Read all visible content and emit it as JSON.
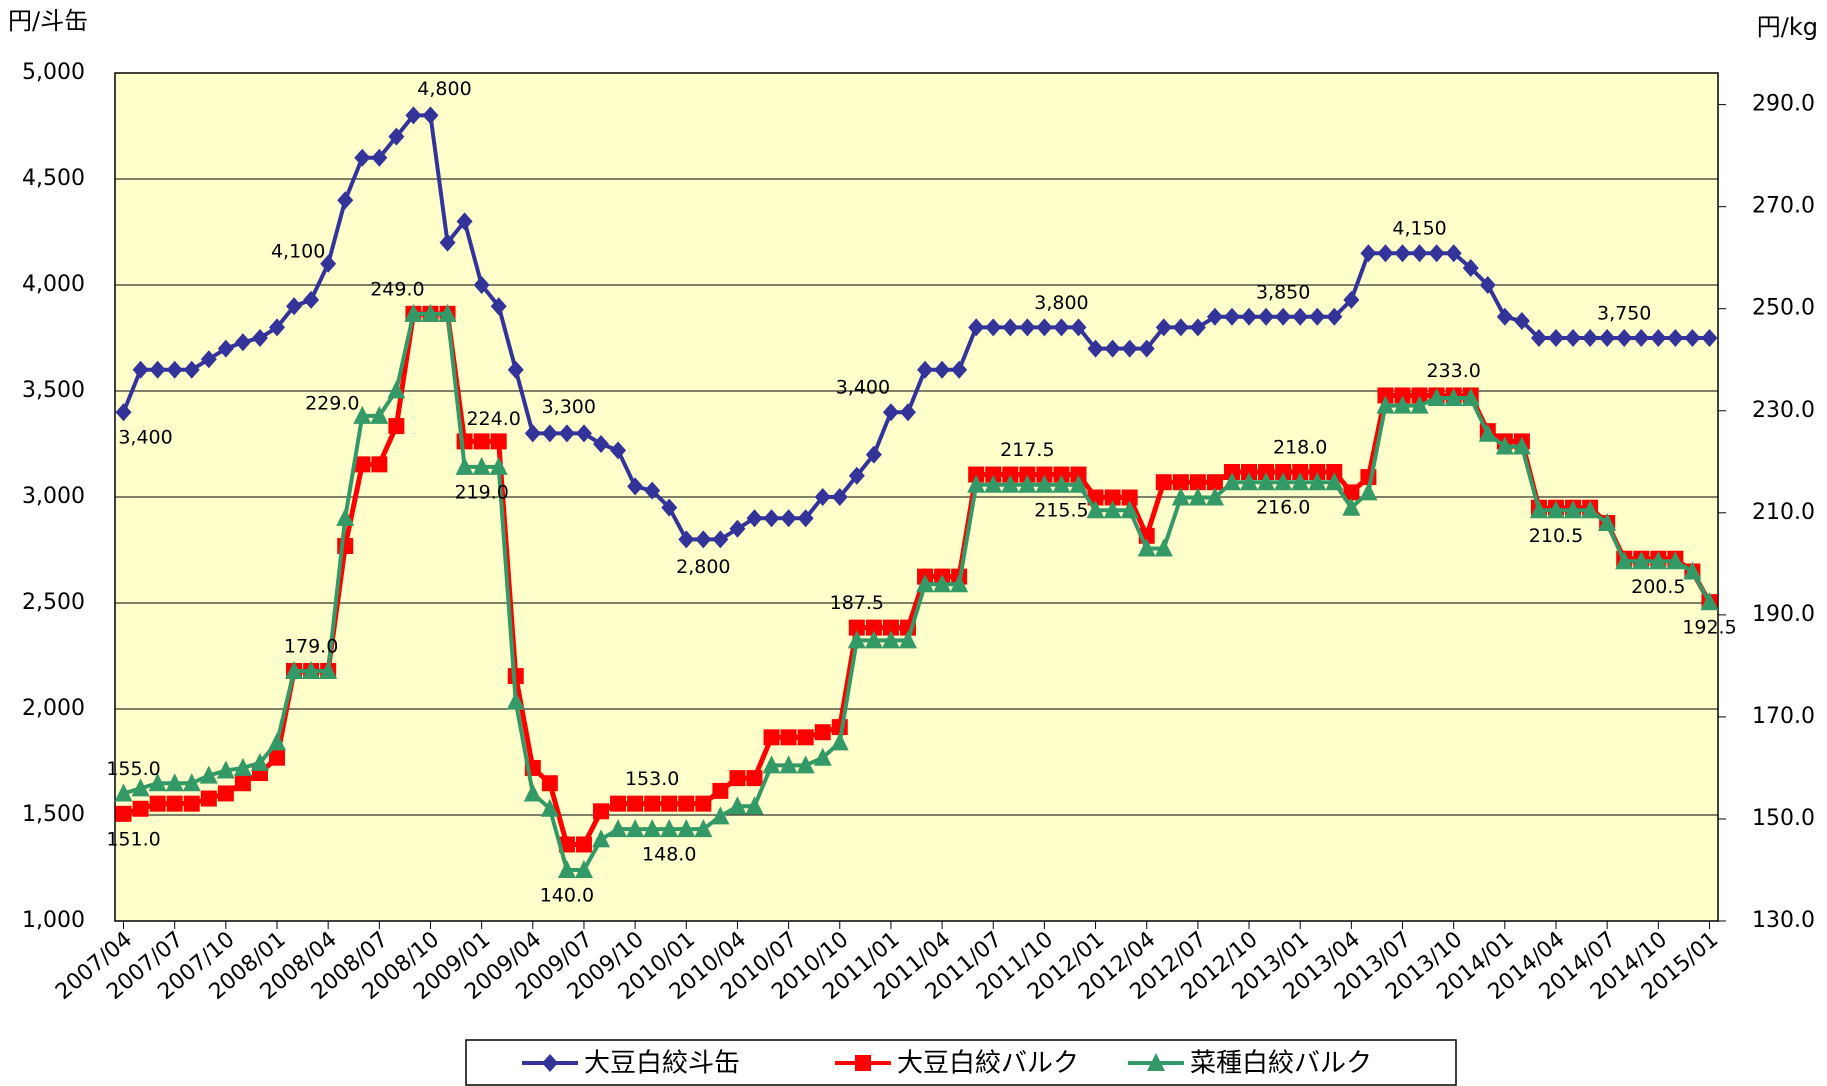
{
  "chart_data": {
    "type": "line",
    "ylabel": "円/斗缶",
    "y2label": "円/kg",
    "categories": [
      "2007/04",
      null,
      null,
      "2007/07",
      null,
      null,
      "2007/10",
      null,
      null,
      "2008/01",
      null,
      null,
      "2008/04",
      null,
      null,
      "2008/07",
      null,
      null,
      "2008/10",
      null,
      null,
      "2009/01",
      null,
      null,
      "2009/04",
      null,
      null,
      "2009/07",
      null,
      null,
      "2009/10",
      null,
      null,
      "2010/01",
      null,
      null,
      "2010/04",
      null,
      null,
      "2010/07",
      null,
      null,
      "2010/10",
      null,
      null,
      "2011/01",
      null,
      null,
      "2011/04",
      null,
      null,
      "2011/07",
      null,
      null,
      "2011/10",
      null,
      null,
      "2012/01",
      null,
      null,
      "2012/04",
      null,
      null,
      "2012/07",
      null,
      null,
      "2012/10",
      null,
      null,
      "2013/01",
      null,
      null,
      "2013/04",
      null,
      null,
      "2013/07",
      null,
      null,
      "2013/10",
      null,
      null,
      "2014/01",
      null,
      null,
      "2014/04",
      null,
      null,
      "2014/07",
      null,
      null,
      "2014/10",
      null,
      null,
      "2015/01"
    ],
    "series": [
      {
        "name": "大豆白絞斗缶",
        "color": "#333399",
        "marker": "diamond",
        "values": [
          3400,
          3600,
          3600,
          3600,
          3600,
          3650,
          3700,
          3730,
          3750,
          3800,
          3900,
          3930,
          4100,
          4400,
          4600,
          4600,
          4700,
          4800,
          4800,
          4200,
          4300,
          4000,
          3900,
          3600,
          3300,
          3300,
          3300,
          3300,
          3250,
          3220,
          3050,
          3030,
          2950,
          2800,
          2800,
          2800,
          2850,
          2900,
          2900,
          2900,
          2900,
          3000,
          3000,
          3100,
          3200,
          3400,
          3400,
          3600,
          3600,
          3600,
          3800,
          3800,
          3800,
          3800,
          3800,
          3800,
          3800,
          3700,
          3700,
          3700,
          3700,
          3800,
          3800,
          3800,
          3850,
          3850,
          3850,
          3850,
          3850,
          3850,
          3850,
          3850,
          3930,
          4150,
          4150,
          4150,
          4150,
          4150,
          4150,
          4080,
          4000,
          3850,
          3830,
          3750,
          3750,
          3750,
          3750,
          3750,
          3750,
          3750,
          3750,
          3750,
          3750,
          3750
        ],
        "value_labels": [
          "3,400",
          null,
          null,
          null,
          null,
          null,
          null,
          null,
          null,
          null,
          null,
          null,
          "4,100",
          null,
          null,
          null,
          null,
          null,
          "4,800",
          null,
          null,
          null,
          null,
          null,
          "3,300",
          null,
          null,
          null,
          null,
          null,
          null,
          null,
          null,
          null,
          "2,800",
          null,
          null,
          null,
          null,
          null,
          null,
          null,
          null,
          null,
          null,
          "3,400",
          null,
          null,
          null,
          null,
          null,
          null,
          null,
          null,
          null,
          "3,800",
          null,
          null,
          null,
          null,
          null,
          null,
          null,
          null,
          null,
          null,
          null,
          null,
          "3,850",
          null,
          null,
          null,
          null,
          null,
          null,
          null,
          "4,150",
          null,
          null,
          null,
          null,
          null,
          null,
          null,
          null,
          null,
          null,
          null,
          "3,750",
          null,
          null,
          null,
          null,
          null
        ]
      },
      {
        "name": "大豆白絞バルク",
        "color": "#ff0000",
        "marker": "square",
        "axis": "y2",
        "values": [
          151,
          152,
          153,
          153,
          153,
          154,
          155,
          157,
          159,
          162,
          179,
          179,
          179,
          203.5,
          219.5,
          219.5,
          227,
          249,
          249,
          249,
          224,
          224,
          224,
          178,
          160,
          157,
          145,
          145,
          151.5,
          153,
          153,
          153,
          153,
          153,
          153,
          155.5,
          158,
          158,
          166,
          166,
          166,
          167,
          168,
          187.5,
          187.5,
          187.5,
          187.5,
          197.5,
          197.5,
          197.5,
          217.5,
          217.5,
          217.5,
          217.5,
          217.5,
          217.5,
          217.5,
          213,
          213,
          213,
          205.5,
          216,
          216,
          216,
          216,
          218,
          218,
          218,
          218,
          218,
          218,
          218,
          214,
          217,
          233,
          233,
          233,
          233,
          233,
          233,
          226,
          224,
          224,
          211,
          211,
          211,
          211,
          208,
          201,
          201,
          201,
          201,
          198.5,
          192.5
        ],
        "value_labels": [
          "151.0",
          null,
          null,
          null,
          null,
          null,
          null,
          null,
          null,
          null,
          null,
          null,
          null,
          null,
          null,
          null,
          null,
          null,
          null,
          null,
          null,
          "224.0",
          null,
          null,
          null,
          null,
          null,
          null,
          null,
          null,
          null,
          "153.0",
          null,
          null,
          null,
          null,
          null,
          null,
          null,
          null,
          null,
          null,
          null,
          "187.5",
          null,
          null,
          null,
          null,
          null,
          null,
          null,
          null,
          null,
          "217.5",
          null,
          null,
          null,
          null,
          null,
          null,
          null,
          null,
          null,
          null,
          null,
          null,
          null,
          null,
          null,
          "218.0",
          null,
          null,
          null,
          null,
          null,
          null,
          null,
          null,
          "233.0",
          null,
          null,
          null,
          null,
          null,
          null,
          null,
          null,
          null,
          null,
          null,
          null,
          null,
          null,
          null
        ]
      },
      {
        "name": "菜種白絞バルク",
        "color": "#339966",
        "marker": "triangle",
        "axis": "y2",
        "values": [
          155,
          156,
          157,
          157,
          157,
          158.5,
          159.5,
          160,
          161,
          165,
          179,
          179,
          179,
          209,
          229,
          229,
          234,
          249,
          249,
          249,
          219,
          219,
          219,
          173,
          155,
          152,
          140,
          140,
          146,
          148,
          148,
          148,
          148,
          148,
          148,
          150.5,
          152.5,
          152.5,
          160.5,
          160.5,
          160.5,
          162,
          165,
          185,
          185,
          185,
          185,
          196,
          196,
          196,
          215.5,
          215.5,
          215.5,
          215.5,
          215.5,
          215.5,
          215.5,
          210.5,
          210.5,
          210.5,
          203,
          203,
          213,
          213,
          213,
          216,
          216,
          216,
          216,
          216,
          216,
          216,
          211,
          214,
          231,
          231,
          231,
          232.5,
          232.5,
          232.5,
          225.5,
          223,
          223,
          210.5,
          210.5,
          210.5,
          210.5,
          208,
          200.5,
          200.5,
          200.5,
          200.5,
          198.5,
          192.5
        ],
        "value_labels": [
          "155.0",
          null,
          null,
          null,
          null,
          null,
          null,
          null,
          null,
          null,
          null,
          "179.0",
          null,
          null,
          "229.0",
          null,
          null,
          "249.0",
          null,
          null,
          null,
          "219.0",
          null,
          null,
          null,
          null,
          "140.0",
          null,
          null,
          null,
          null,
          null,
          "148.0",
          null,
          null,
          null,
          null,
          null,
          null,
          null,
          null,
          null,
          null,
          null,
          null,
          null,
          null,
          null,
          null,
          null,
          null,
          null,
          null,
          null,
          null,
          "215.5",
          null,
          null,
          null,
          null,
          null,
          null,
          null,
          null,
          null,
          null,
          null,
          null,
          "216.0",
          null,
          null,
          null,
          null,
          null,
          null,
          null,
          null,
          null,
          null,
          null,
          null,
          null,
          null,
          null,
          "210.5",
          null,
          null,
          null,
          null,
          null,
          "200.5",
          null,
          null,
          "192.5"
        ]
      }
    ],
    "ylim": [
      1000,
      5000
    ],
    "yticks": [
      {
        "value": 1000,
        "label": "1,000"
      },
      {
        "value": 1500,
        "label": "1,500"
      },
      {
        "value": 2000,
        "label": "2,000"
      },
      {
        "value": 2500,
        "label": "2,500"
      },
      {
        "value": 3000,
        "label": "3,000"
      },
      {
        "value": 3500,
        "label": "3,500"
      },
      {
        "value": 4000,
        "label": "4,000"
      },
      {
        "value": 4500,
        "label": "4,500"
      },
      {
        "value": 5000,
        "label": "5,000"
      }
    ],
    "y2lim": [
      130,
      296.2
    ],
    "y2ticks": [
      {
        "value": 130,
        "label": "130.0"
      },
      {
        "value": 150,
        "label": "150.0"
      },
      {
        "value": 170,
        "label": "170.0"
      },
      {
        "value": 190,
        "label": "190.0"
      },
      {
        "value": 210,
        "label": "210.0"
      },
      {
        "value": 230,
        "label": "230.0"
      },
      {
        "value": 250,
        "label": "250.0"
      },
      {
        "value": 270,
        "label": "270.0"
      },
      {
        "value": 290,
        "label": "290.0"
      }
    ],
    "grid": true,
    "legend": "bottom",
    "background": "#ffffcc"
  }
}
